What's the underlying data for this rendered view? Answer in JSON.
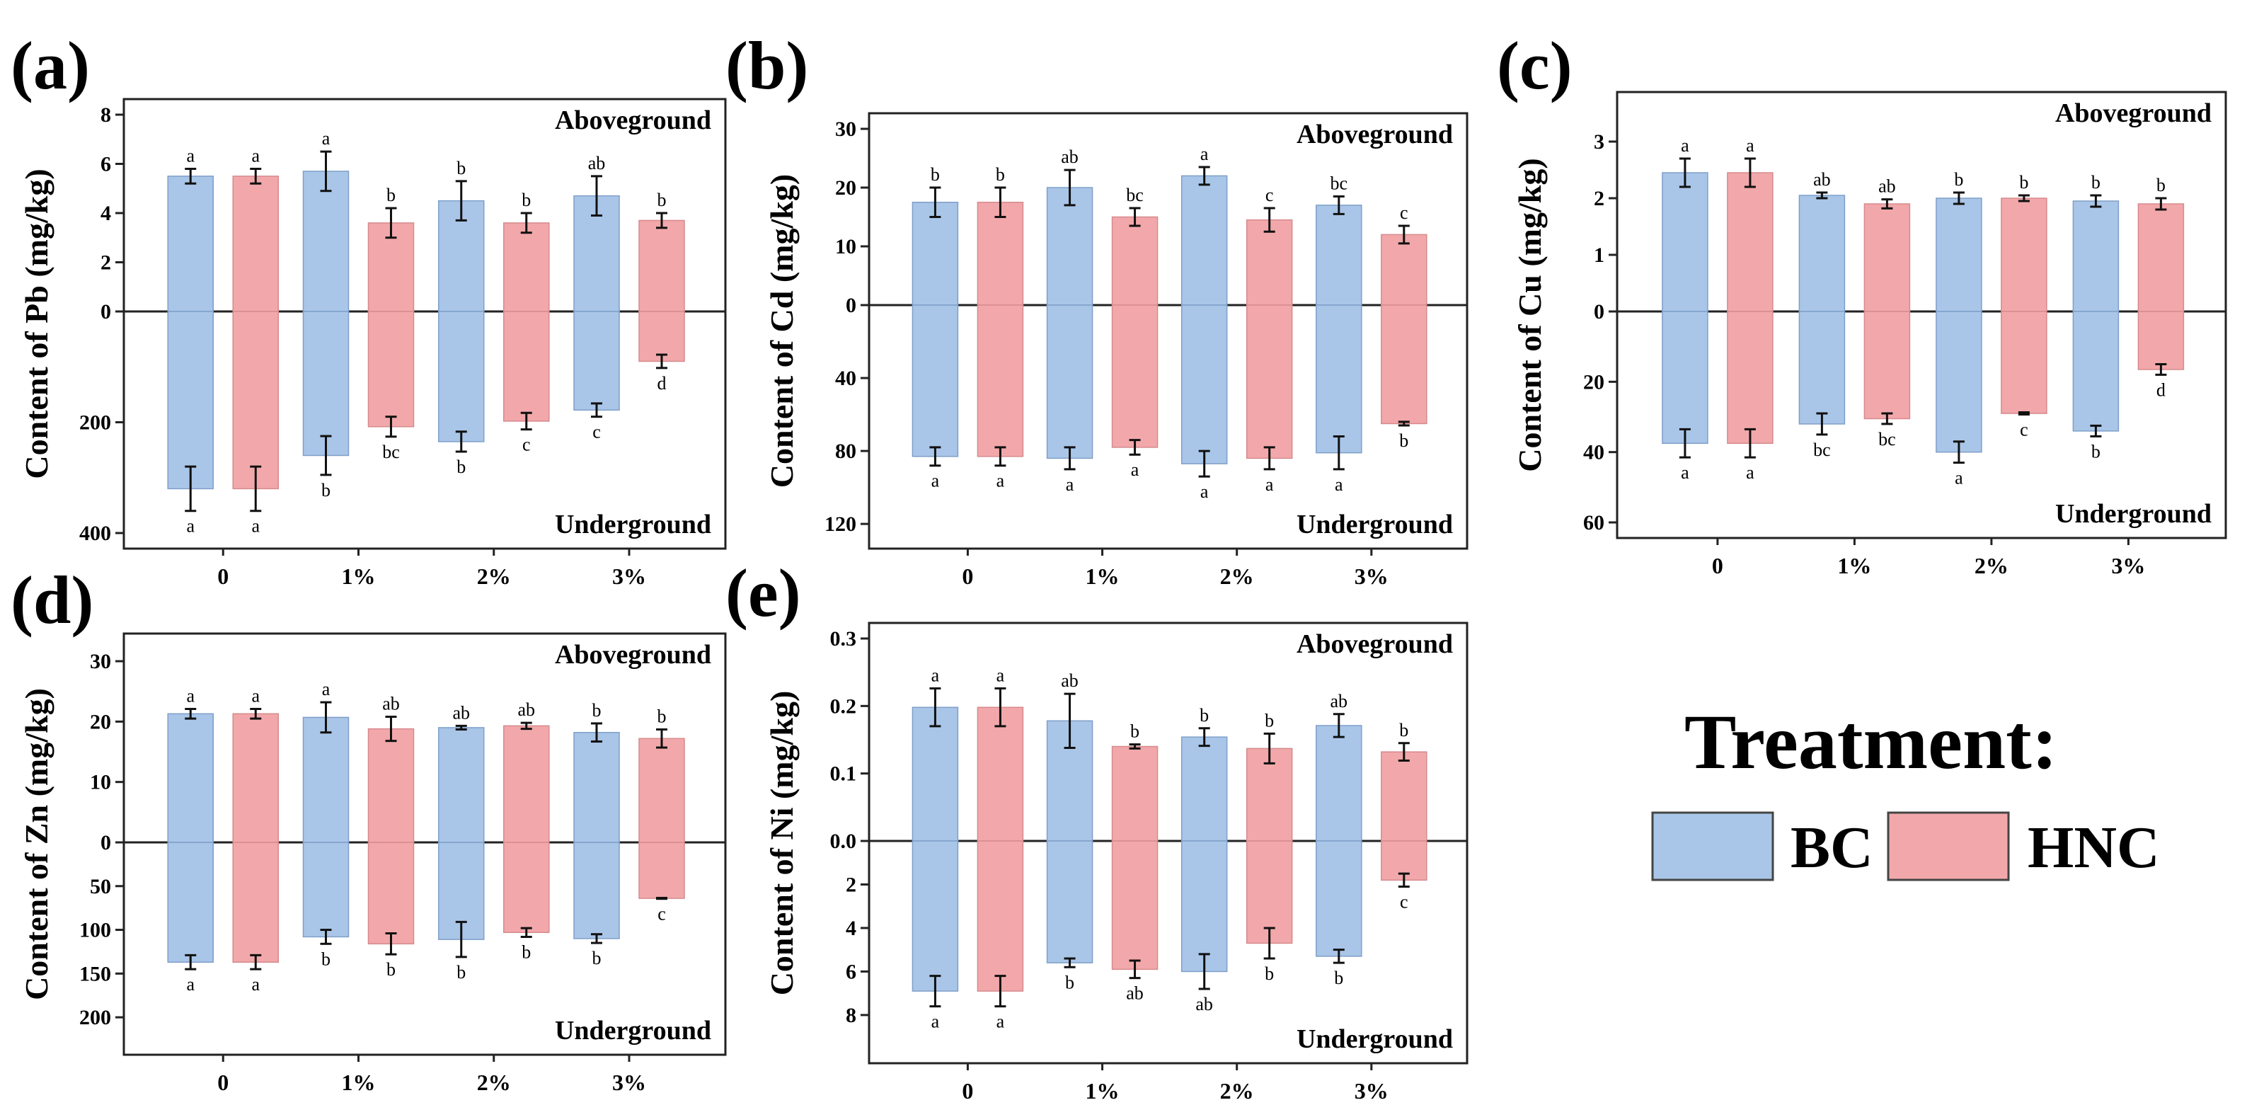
{
  "colors": {
    "BC": "#a9c6e8",
    "HNC": "#f2a8aa",
    "BC_stroke": "#7f9fc9",
    "HNC_stroke": "#d68a8d"
  },
  "legend": {
    "title": "Treatment:",
    "items": [
      "BC",
      "HNC"
    ]
  },
  "chart_data": [
    {
      "type": "bar",
      "panel": "(a)",
      "ylabel": "Content of Pb  (mg/kg)",
      "top_label": "Aboveground",
      "bottom_label": "Underground",
      "categories": [
        "0",
        "1%",
        "2%",
        "3%"
      ],
      "top_ylim": [
        0,
        8
      ],
      "top_ticks": [
        "0",
        "2",
        "4",
        "6",
        "8"
      ],
      "bottom_ylim": [
        0,
        400
      ],
      "bottom_ticks": [
        "200",
        "400"
      ],
      "series": [
        {
          "name": "BC",
          "top": [
            5.5,
            5.7,
            4.5,
            4.7
          ],
          "top_err": [
            0.3,
            0.8,
            0.8,
            0.8
          ],
          "top_sig": [
            "a",
            "a",
            "b",
            "ab"
          ],
          "bottom": [
            320,
            260,
            235,
            178
          ],
          "bottom_err": [
            40,
            35,
            18,
            12
          ],
          "bottom_sig": [
            "a",
            "b",
            "b",
            "c"
          ]
        },
        {
          "name": "HNC",
          "top": [
            5.5,
            3.6,
            3.6,
            3.7
          ],
          "top_err": [
            0.3,
            0.6,
            0.4,
            0.3
          ],
          "top_sig": [
            "a",
            "b",
            "b",
            "b"
          ],
          "bottom": [
            320,
            208,
            198,
            90
          ],
          "bottom_err": [
            40,
            18,
            15,
            12
          ],
          "bottom_sig": [
            "a",
            "bc",
            "c",
            "d"
          ]
        }
      ]
    },
    {
      "type": "bar",
      "panel": "(b)",
      "ylabel": "Content of Cd  (mg/kg)",
      "top_label": "Aboveground",
      "bottom_label": "Underground",
      "categories": [
        "0",
        "1%",
        "2%",
        "3%"
      ],
      "top_ylim": [
        0,
        30
      ],
      "top_ticks": [
        "0",
        "10",
        "20",
        "30"
      ],
      "bottom_ylim": [
        0,
        125
      ],
      "bottom_ticks": [
        "40",
        "80",
        "120"
      ],
      "series": [
        {
          "name": "BC",
          "top": [
            17.5,
            20,
            22,
            17
          ],
          "top_err": [
            2.5,
            3,
            1.5,
            1.5
          ],
          "top_sig": [
            "b",
            "ab",
            "a",
            "bc"
          ],
          "bottom": [
            83,
            84,
            87,
            81
          ],
          "bottom_err": [
            5,
            6,
            7,
            9
          ],
          "bottom_sig": [
            "a",
            "a",
            "a",
            "a"
          ]
        },
        {
          "name": "HNC",
          "top": [
            17.5,
            15,
            14.5,
            12
          ],
          "top_err": [
            2.5,
            1.5,
            2,
            1.5
          ],
          "top_sig": [
            "b",
            "bc",
            "c",
            "c"
          ],
          "bottom": [
            83,
            78,
            84,
            65
          ],
          "bottom_err": [
            5,
            4,
            6,
            1
          ],
          "bottom_sig": [
            "a",
            "a",
            "a",
            "b"
          ]
        }
      ]
    },
    {
      "type": "bar",
      "panel": "(c)",
      "ylabel": "Content of Cu  (mg/kg)",
      "top_label": "Aboveground",
      "bottom_label": "Underground",
      "categories": [
        "0",
        "1%",
        "2%",
        "3%"
      ],
      "top_ylim": [
        0,
        3.6
      ],
      "top_ticks": [
        "0",
        "1",
        "2",
        "3"
      ],
      "bottom_ylim": [
        0,
        60
      ],
      "bottom_ticks": [
        "20",
        "40",
        "60"
      ],
      "series": [
        {
          "name": "BC",
          "top": [
            2.45,
            2.05,
            2.0,
            1.95
          ],
          "top_err": [
            0.25,
            0.05,
            0.1,
            0.1
          ],
          "top_sig": [
            "a",
            "ab",
            "b",
            "b"
          ],
          "bottom": [
            37.5,
            32,
            40,
            34
          ],
          "bottom_err": [
            4,
            3,
            3,
            1.5
          ],
          "bottom_sig": [
            "a",
            "bc",
            "a",
            "b"
          ]
        },
        {
          "name": "HNC",
          "top": [
            2.45,
            1.9,
            2.0,
            1.9
          ],
          "top_err": [
            0.25,
            0.08,
            0.05,
            0.1
          ],
          "top_sig": [
            "a",
            "ab",
            "b",
            "b"
          ],
          "bottom": [
            37.5,
            30.5,
            29,
            16.5
          ],
          "bottom_err": [
            4,
            1.5,
            0.3,
            1.5
          ],
          "bottom_sig": [
            "a",
            "bc",
            "c",
            "d"
          ]
        }
      ]
    },
    {
      "type": "bar",
      "panel": "(d)",
      "ylabel": "Content of Zn  (mg/kg)",
      "top_label": "Aboveground",
      "bottom_label": "Underground",
      "categories": [
        "0",
        "1%",
        "2%",
        "3%"
      ],
      "top_ylim": [
        0,
        32
      ],
      "top_ticks": [
        "0",
        "10",
        "20",
        "30"
      ],
      "bottom_ylim": [
        0,
        225
      ],
      "bottom_ticks": [
        "50",
        "100",
        "150",
        "200"
      ],
      "series": [
        {
          "name": "BC",
          "top": [
            21.3,
            20.7,
            19,
            18.2
          ],
          "top_err": [
            0.8,
            2.5,
            0.3,
            1.5
          ],
          "top_sig": [
            "a",
            "a",
            "ab",
            "b"
          ],
          "bottom": [
            137,
            108,
            111,
            110
          ],
          "bottom_err": [
            8,
            8,
            20,
            5
          ],
          "bottom_sig": [
            "a",
            "b",
            "b",
            "b"
          ]
        },
        {
          "name": "HNC",
          "top": [
            21.3,
            18.8,
            19.3,
            17.2
          ],
          "top_err": [
            0.8,
            2,
            0.5,
            1.5
          ],
          "top_sig": [
            "a",
            "ab",
            "ab",
            "b"
          ],
          "bottom": [
            137,
            116,
            103,
            64
          ],
          "bottom_err": [
            8,
            12,
            5,
            0.5
          ],
          "bottom_sig": [
            "a",
            "b",
            "b",
            "c"
          ]
        }
      ]
    },
    {
      "type": "bar",
      "panel": "(e)",
      "ylabel": "Content of Ni  (mg/kg)",
      "top_label": "Aboveground",
      "bottom_label": "Underground",
      "categories": [
        "0",
        "1%",
        "2%",
        "3%"
      ],
      "top_ylim": [
        0,
        0.3
      ],
      "top_ticks": [
        "0.0",
        "0.1",
        "0.2",
        "0.3"
      ],
      "bottom_ylim": [
        0,
        9.5
      ],
      "bottom_ticks": [
        "2",
        "4",
        "6",
        "8"
      ],
      "series": [
        {
          "name": "BC",
          "top": [
            0.198,
            0.178,
            0.154,
            0.171
          ],
          "top_err": [
            0.028,
            0.04,
            0.013,
            0.017
          ],
          "top_sig": [
            "a",
            "ab",
            "b",
            "ab"
          ],
          "bottom": [
            6.9,
            5.6,
            6.0,
            5.3
          ],
          "bottom_err": [
            0.7,
            0.2,
            0.8,
            0.3
          ],
          "bottom_sig": [
            "a",
            "b",
            "ab",
            "b"
          ]
        },
        {
          "name": "HNC",
          "top": [
            0.198,
            0.14,
            0.137,
            0.132
          ],
          "top_err": [
            0.028,
            0.003,
            0.022,
            0.013
          ],
          "top_sig": [
            "a",
            "b",
            "b",
            "b"
          ],
          "bottom": [
            6.9,
            5.9,
            4.7,
            1.8
          ],
          "bottom_err": [
            0.7,
            0.4,
            0.7,
            0.3
          ],
          "bottom_sig": [
            "a",
            "ab",
            "b",
            "c"
          ]
        }
      ]
    }
  ]
}
